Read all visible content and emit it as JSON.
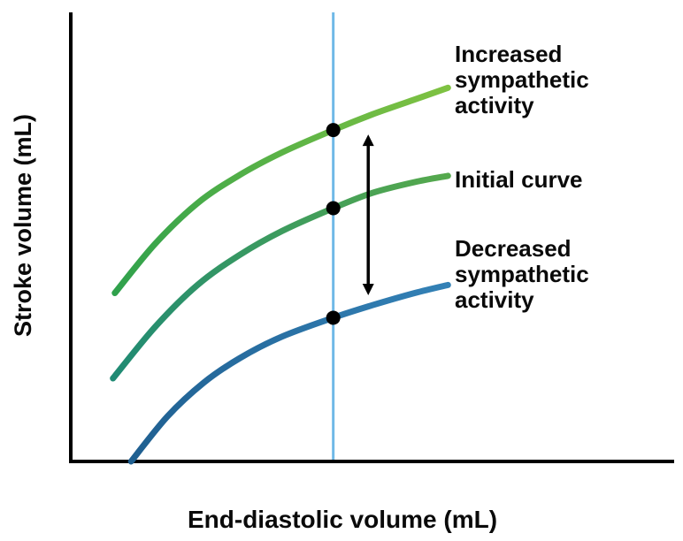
{
  "chart_data": {
    "type": "line",
    "title": "",
    "xlabel": "End-diastolic volume (mL)",
    "ylabel": "Stroke volume (mL)",
    "xlim": [
      0,
      100
    ],
    "ylim": [
      0,
      100
    ],
    "grid": false,
    "legend_position": "right-annotations",
    "axis_color": "#000000",
    "marker_color": "#000000",
    "series": [
      {
        "name": "Increased sympathetic activity",
        "color_start": "#2fa14c",
        "color_end": "#7fc242",
        "points": [
          [
            7.3,
            37.5
          ],
          [
            14,
            48.5
          ],
          [
            21,
            57.5
          ],
          [
            28,
            63.8
          ],
          [
            35,
            68.8
          ],
          [
            43.5,
            73.8
          ],
          [
            50,
            77.3
          ],
          [
            57,
            80.6
          ],
          [
            62.5,
            83.2
          ]
        ]
      },
      {
        "name": "Initial curve",
        "color_start": "#1f8a74",
        "color_end": "#55a94d",
        "points": [
          [
            7,
            18.5
          ],
          [
            14,
            30
          ],
          [
            21,
            39.3
          ],
          [
            28,
            46
          ],
          [
            35,
            51.3
          ],
          [
            43.5,
            56.4
          ],
          [
            50,
            59.8
          ],
          [
            57,
            62.2
          ],
          [
            62.5,
            63.6
          ]
        ]
      },
      {
        "name": "Decreased sympathetic activity",
        "color_start": "#1f5f90",
        "color_end": "#3381b6",
        "points": [
          [
            10,
            0
          ],
          [
            16,
            10
          ],
          [
            22,
            17.5
          ],
          [
            28,
            23
          ],
          [
            35,
            27.8
          ],
          [
            43.5,
            32
          ],
          [
            50,
            34.8
          ],
          [
            57,
            37.5
          ],
          [
            62.5,
            39.3
          ]
        ]
      }
    ],
    "reference_line": {
      "x": 43.5,
      "color": "#6fb9e7"
    },
    "markers": [
      {
        "series": "Increased sympathetic activity",
        "x": 43.5,
        "y": 73.8
      },
      {
        "series": "Initial curve",
        "x": 43.5,
        "y": 56.4
      },
      {
        "series": "Decreased sympathetic activity",
        "x": 43.5,
        "y": 32.0
      }
    ],
    "arrow": {
      "x": 49.3,
      "y_top": 72.8,
      "y_bottom": 37.0,
      "style": "double-headed",
      "color": "#000000"
    },
    "annotations": [
      {
        "label": "Increased\nsympathetic\nactivity"
      },
      {
        "label": "Initial curve"
      },
      {
        "label": "Decreased\nsympathetic\nactivity"
      }
    ]
  }
}
